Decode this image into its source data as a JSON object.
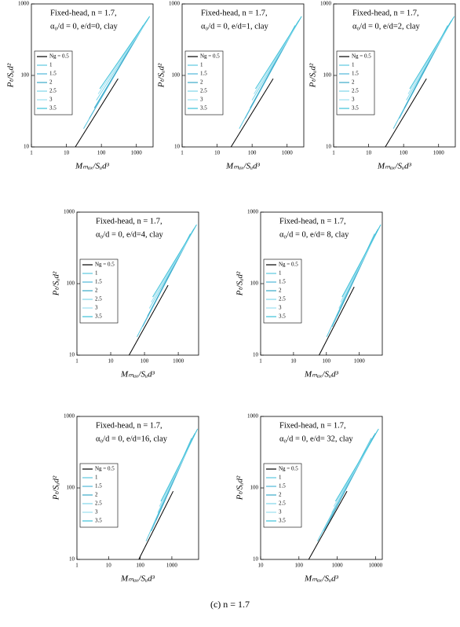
{
  "chart_data": [
    {
      "type": "line",
      "title": "Fixed-head, n = 1.7,",
      "subtitle": "α₀/d = 0,  e/d=0,  clay",
      "x_label": "Mₘₐₓ/Sᵤd³",
      "y_label": "Pₜ/Sᵤd²",
      "log": true,
      "xlim": [
        1,
        3000
      ],
      "ylim": [
        10,
        1000
      ],
      "xticks": [
        1,
        10,
        100,
        1000
      ],
      "yticks": [
        10,
        100,
        1000
      ],
      "series": [
        {
          "name": "Ng = 0.5",
          "color": "#000000",
          "x": [
            18,
            300
          ],
          "y": [
            10,
            90
          ]
        },
        {
          "name": "1",
          "color": "#5bc8e0",
          "x": [
            31,
            1560
          ],
          "y": [
            18,
            500
          ]
        },
        {
          "name": "1.5",
          "color": "#4fb8d8",
          "x": [
            45,
            1800
          ],
          "y": [
            25,
            540
          ]
        },
        {
          "name": "2",
          "color": "#3aa9c8",
          "x": [
            63,
            1970
          ],
          "y": [
            35,
            580
          ]
        },
        {
          "name": "2.5",
          "color": "#7fd6ea",
          "x": [
            72,
            2160
          ],
          "y": [
            45,
            610
          ]
        },
        {
          "name": "3",
          "color": "#9bdff0",
          "x": [
            81,
            2280
          ],
          "y": [
            55,
            640
          ]
        },
        {
          "name": "3.5",
          "color": "#3cc0d8",
          "x": [
            90,
            2400
          ],
          "y": [
            65,
            670
          ]
        }
      ]
    },
    {
      "type": "line",
      "title": "Fixed-head, n = 1.7,",
      "subtitle": "α₀/d = 0,  e/d=1,  clay",
      "x_label": "Mₘₐₓ/Sᵤd³",
      "y_label": "Pₜ/Sᵤd²",
      "log": true,
      "xlim": [
        1,
        3000
      ],
      "ylim": [
        10,
        1000
      ],
      "xticks": [
        1,
        10,
        100,
        1000
      ],
      "yticks": [
        10,
        100,
        1000
      ],
      "series": [
        {
          "name": "Ng = 0.5",
          "color": "#000000",
          "x": [
            25,
            400
          ],
          "y": [
            10,
            90
          ]
        },
        {
          "name": "1",
          "color": "#5bc8e0",
          "x": [
            43,
            1690
          ],
          "y": [
            18,
            500
          ]
        },
        {
          "name": "1.5",
          "color": "#4fb8d8",
          "x": [
            63,
            1950
          ],
          "y": [
            25,
            540
          ]
        },
        {
          "name": "2",
          "color": "#3aa9c8",
          "x": [
            88,
            2130
          ],
          "y": [
            35,
            580
          ]
        },
        {
          "name": "2.5",
          "color": "#7fd6ea",
          "x": [
            100,
            2340
          ],
          "y": [
            45,
            610
          ]
        },
        {
          "name": "3",
          "color": "#9bdff0",
          "x": [
            113,
            2470
          ],
          "y": [
            55,
            640
          ]
        },
        {
          "name": "3.5",
          "color": "#3cc0d8",
          "x": [
            125,
            2600
          ],
          "y": [
            65,
            670
          ]
        }
      ]
    },
    {
      "type": "line",
      "title": "Fixed-head, n = 1.7,",
      "subtitle": "α₀/d = 0,  e/d=2,  clay",
      "x_label": "Mₘₐₓ/Sᵤd³",
      "y_label": "Pₜ/Sᵤd²",
      "log": true,
      "xlim": [
        1,
        3000
      ],
      "ylim": [
        10,
        1000
      ],
      "xticks": [
        1,
        10,
        100,
        1000
      ],
      "yticks": [
        10,
        100,
        1000
      ],
      "series": [
        {
          "name": "Ng = 0.5",
          "color": "#000000",
          "x": [
            30,
            450
          ],
          "y": [
            10,
            90
          ]
        },
        {
          "name": "1",
          "color": "#5bc8e0",
          "x": [
            51,
            1820
          ],
          "y": [
            18,
            500
          ]
        },
        {
          "name": "1.5",
          "color": "#4fb8d8",
          "x": [
            75,
            2100
          ],
          "y": [
            25,
            540
          ]
        },
        {
          "name": "2",
          "color": "#3aa9c8",
          "x": [
            105,
            2300
          ],
          "y": [
            35,
            580
          ]
        },
        {
          "name": "2.5",
          "color": "#7fd6ea",
          "x": [
            120,
            2520
          ],
          "y": [
            45,
            610
          ]
        },
        {
          "name": "3",
          "color": "#9bdff0",
          "x": [
            135,
            2660
          ],
          "y": [
            55,
            640
          ]
        },
        {
          "name": "3.5",
          "color": "#3cc0d8",
          "x": [
            150,
            2800
          ],
          "y": [
            65,
            670
          ]
        }
      ]
    },
    {
      "type": "line",
      "title": "Fixed-head, n = 1.7,",
      "subtitle": "α₀/d = 0,  e/d=4,  clay",
      "x_label": "Mₘₐₓ/Sᵤd³",
      "y_label": "Pₜ/Sᵤd²",
      "log": true,
      "xlim": [
        1,
        4000
      ],
      "ylim": [
        10,
        1000
      ],
      "xticks": [
        1,
        10,
        100,
        1000
      ],
      "yticks": [
        10,
        100,
        1000
      ],
      "series": [
        {
          "name": "Ng = 0.5",
          "color": "#000000",
          "x": [
            35,
            500
          ],
          "y": [
            10,
            95
          ]
        },
        {
          "name": "1",
          "color": "#5bc8e0",
          "x": [
            60,
            2280
          ],
          "y": [
            18,
            500
          ]
        },
        {
          "name": "1.5",
          "color": "#4fb8d8",
          "x": [
            88,
            2630
          ],
          "y": [
            25,
            540
          ]
        },
        {
          "name": "2",
          "color": "#3aa9c8",
          "x": [
            123,
            2870
          ],
          "y": [
            35,
            580
          ]
        },
        {
          "name": "2.5",
          "color": "#7fd6ea",
          "x": [
            140,
            3150
          ],
          "y": [
            45,
            610
          ]
        },
        {
          "name": "3",
          "color": "#9bdff0",
          "x": [
            158,
            3330
          ],
          "y": [
            55,
            640
          ]
        },
        {
          "name": "3.5",
          "color": "#3cc0d8",
          "x": [
            175,
            3500
          ],
          "y": [
            65,
            670
          ]
        }
      ]
    },
    {
      "type": "line",
      "title": "Fixed-head, n = 1.7,",
      "subtitle": "α₀/d = 0,  e/d= 8,  clay",
      "x_label": "Mₘₐₓ/Sᵤd³",
      "y_label": "Pₜ/Sᵤd²",
      "log": true,
      "xlim": [
        1,
        5000
      ],
      "ylim": [
        10,
        1000
      ],
      "xticks": [
        1,
        10,
        100,
        1000
      ],
      "yticks": [
        10,
        100,
        1000
      ],
      "series": [
        {
          "name": "Ng = 0.5",
          "color": "#000000",
          "x": [
            60,
            700
          ],
          "y": [
            10,
            90
          ]
        },
        {
          "name": "1",
          "color": "#5bc8e0",
          "x": [
            102,
            2930
          ],
          "y": [
            18,
            500
          ]
        },
        {
          "name": "1.5",
          "color": "#4fb8d8",
          "x": [
            150,
            3380
          ],
          "y": [
            25,
            540
          ]
        },
        {
          "name": "2",
          "color": "#3aa9c8",
          "x": [
            210,
            3690
          ],
          "y": [
            35,
            580
          ]
        },
        {
          "name": "2.5",
          "color": "#7fd6ea",
          "x": [
            240,
            4050
          ],
          "y": [
            45,
            610
          ]
        },
        {
          "name": "3",
          "color": "#9bdff0",
          "x": [
            270,
            4280
          ],
          "y": [
            55,
            640
          ]
        },
        {
          "name": "3.5",
          "color": "#3cc0d8",
          "x": [
            300,
            4500
          ],
          "y": [
            65,
            670
          ]
        }
      ]
    },
    {
      "type": "line",
      "title": "Fixed-head, n = 1.7,",
      "subtitle": "α₀/d = 0,  e/d=16,  clay",
      "x_label": "Mₘₐₓ/Sᵤd³",
      "y_label": "Pₜ/Sᵤd²",
      "log": true,
      "xlim": [
        1,
        7000
      ],
      "ylim": [
        10,
        1000
      ],
      "xticks": [
        1,
        10,
        100,
        1000
      ],
      "yticks": [
        10,
        100,
        1000
      ],
      "series": [
        {
          "name": "Ng = 0.5",
          "color": "#000000",
          "x": [
            90,
            1100
          ],
          "y": [
            10,
            90
          ]
        },
        {
          "name": "1",
          "color": "#5bc8e0",
          "x": [
            153,
            4230
          ],
          "y": [
            18,
            500
          ]
        },
        {
          "name": "1.5",
          "color": "#4fb8d8",
          "x": [
            225,
            4880
          ],
          "y": [
            25,
            540
          ]
        },
        {
          "name": "2",
          "color": "#3aa9c8",
          "x": [
            315,
            5330
          ],
          "y": [
            35,
            580
          ]
        },
        {
          "name": "2.5",
          "color": "#7fd6ea",
          "x": [
            360,
            5850
          ],
          "y": [
            45,
            610
          ]
        },
        {
          "name": "3",
          "color": "#9bdff0",
          "x": [
            405,
            6180
          ],
          "y": [
            55,
            640
          ]
        },
        {
          "name": "3.5",
          "color": "#3cc0d8",
          "x": [
            450,
            6500
          ],
          "y": [
            65,
            670
          ]
        }
      ]
    },
    {
      "type": "line",
      "title": "Fixed-head, n = 1.7,",
      "subtitle": "α₀/d = 0,  e/d= 32,  clay",
      "x_label": "Mₘₐₓ/Sᵤd³",
      "y_label": "Pₜ/Sᵤd²",
      "log": true,
      "xlim": [
        10,
        15000
      ],
      "ylim": [
        10,
        1000
      ],
      "xticks": [
        10,
        100,
        1000,
        10000
      ],
      "yticks": [
        10,
        100,
        1000
      ],
      "series": [
        {
          "name": "Ng = 0.5",
          "color": "#000000",
          "x": [
            180,
            1800
          ],
          "y": [
            10,
            90
          ]
        },
        {
          "name": "1",
          "color": "#5bc8e0",
          "x": [
            306,
            7800
          ],
          "y": [
            18,
            500
          ]
        },
        {
          "name": "1.5",
          "color": "#4fb8d8",
          "x": [
            450,
            9000
          ],
          "y": [
            25,
            540
          ]
        },
        {
          "name": "2",
          "color": "#3aa9c8",
          "x": [
            630,
            9840
          ],
          "y": [
            35,
            580
          ]
        },
        {
          "name": "2.5",
          "color": "#7fd6ea",
          "x": [
            720,
            10800
          ],
          "y": [
            45,
            610
          ]
        },
        {
          "name": "3",
          "color": "#9bdff0",
          "x": [
            810,
            11400
          ],
          "y": [
            55,
            640
          ]
        },
        {
          "name": "3.5",
          "color": "#3cc0d8",
          "x": [
            900,
            12000
          ],
          "y": [
            65,
            670
          ]
        }
      ]
    }
  ],
  "caption": "(c)    n = 1.7"
}
